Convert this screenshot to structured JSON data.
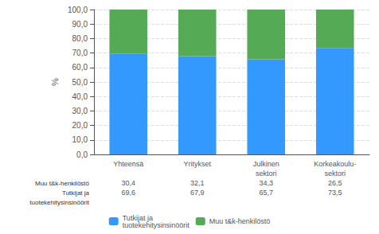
{
  "chart_data": {
    "type": "bar",
    "stacked": true,
    "categories": [
      "Yhteensä",
      "Yritykset",
      "Julkinen\nsektori",
      "Korkeakoulu-\nsektori"
    ],
    "series": [
      {
        "name": "Tutkijat ja\ntuotekehitysinsinöörit",
        "color": "#3399FF",
        "values": [
          69.6,
          67.9,
          65.7,
          73.5
        ],
        "value_labels": [
          "69,6",
          "67,9",
          "65,7",
          "73,5"
        ]
      },
      {
        "name": "Muu t&k-henkilöstö",
        "color": "#55AA55",
        "values": [
          30.4,
          32.1,
          34.3,
          26.5
        ],
        "value_labels": [
          "30,4",
          "32,1",
          "34,3",
          "26,5"
        ]
      }
    ],
    "ylabel": "%",
    "ylim": [
      0,
      100
    ],
    "yticks": [
      {
        "value": 0,
        "label": "0,0"
      },
      {
        "value": 10,
        "label": "10,0"
      },
      {
        "value": 20,
        "label": "20,0"
      },
      {
        "value": 30,
        "label": "30,0"
      },
      {
        "value": 40,
        "label": "40,0"
      },
      {
        "value": 50,
        "label": "50,0"
      },
      {
        "value": 60,
        "label": "60,0"
      },
      {
        "value": 70,
        "label": "70,0"
      },
      {
        "value": 80,
        "label": "80,0"
      },
      {
        "value": 90,
        "label": "90,0"
      },
      {
        "value": 100,
        "label": "100,0"
      }
    ],
    "grid": true,
    "legend": "bottom"
  }
}
